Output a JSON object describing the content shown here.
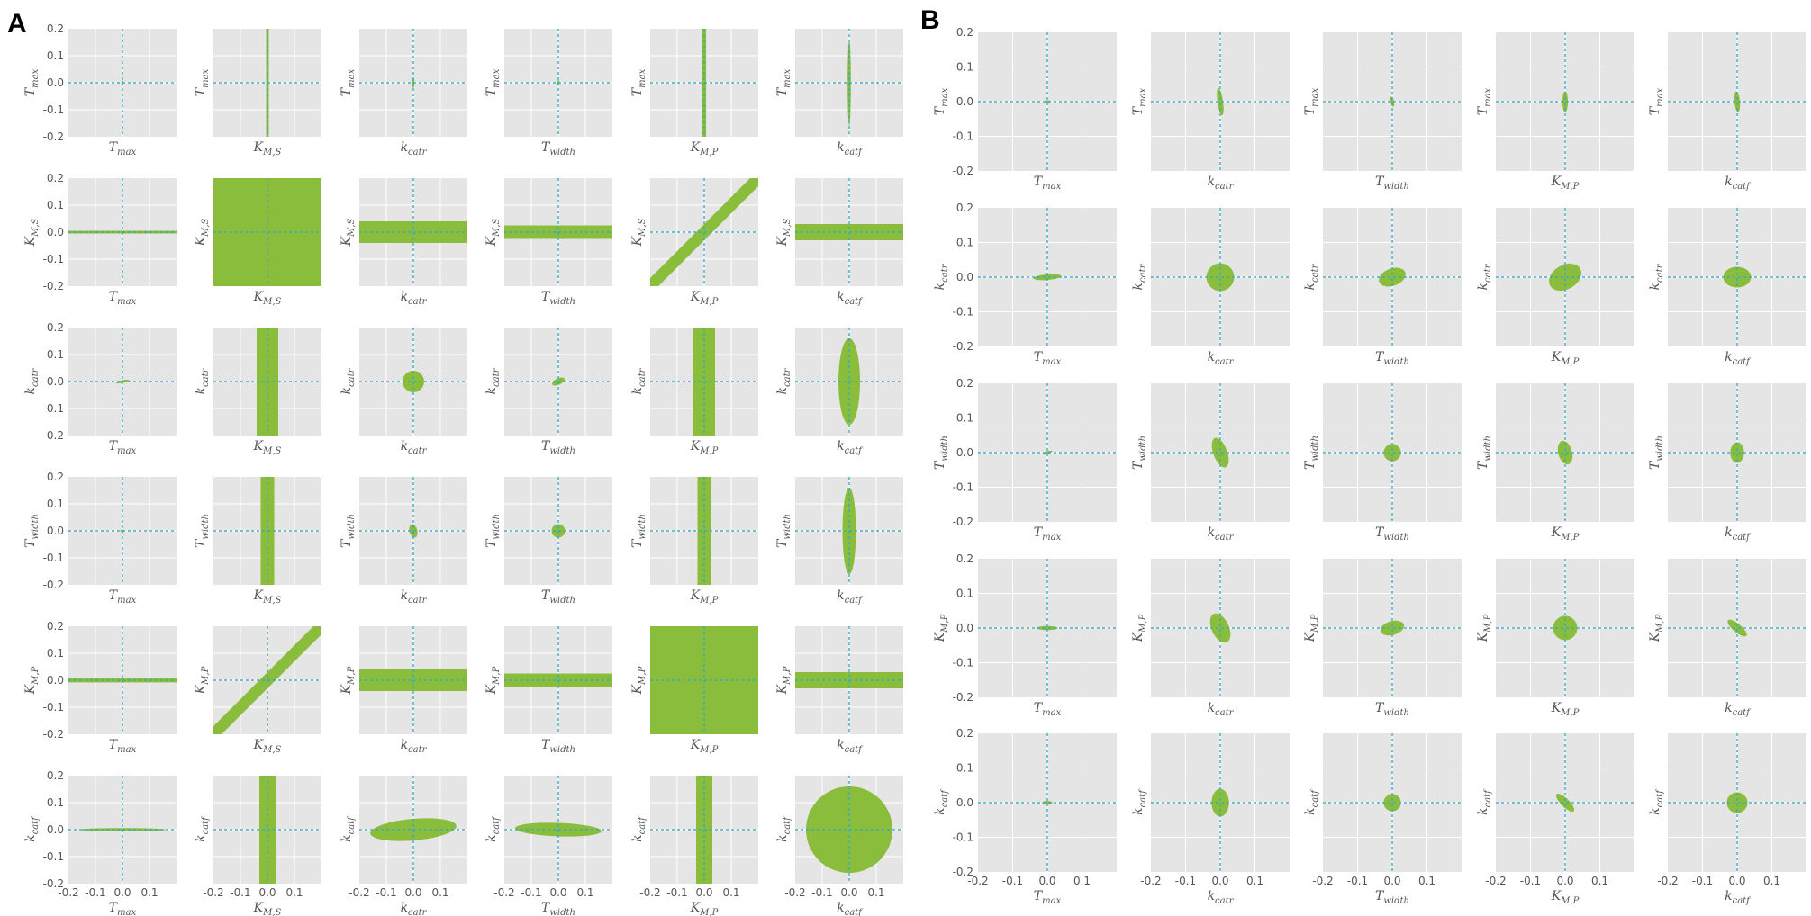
{
  "colors": {
    "background": "#e5e5e5",
    "grid": "#ffffff",
    "fill": "#8bbd3c",
    "crosshair": "#2aa8c8",
    "text": "#555555"
  },
  "chart_data": [
    {
      "panel": "A",
      "type": "scatter",
      "description_type": "confidence-region matrix",
      "xlim": [
        -0.2,
        0.2
      ],
      "ylim": [
        -0.2,
        0.2
      ],
      "tick_values": [
        -0.2,
        -0.1,
        0.0,
        0.1,
        0.2
      ],
      "x_tick_labels": [
        "-0.2",
        "-0.1",
        "0.0",
        "0.1"
      ],
      "y_tick_labels": [
        "0.2",
        "0.1",
        "0.0",
        "-0.1",
        "-0.2"
      ],
      "rows": [
        {
          "label": "T",
          "sub": "max"
        },
        {
          "label": "K",
          "sub": "M,S"
        },
        {
          "label": "k",
          "sub": "catr"
        },
        {
          "label": "T",
          "sub": "width"
        },
        {
          "label": "K",
          "sub": "M,P"
        },
        {
          "label": "k",
          "sub": "catf"
        }
      ],
      "cols": [
        {
          "label": "T",
          "sub": "max"
        },
        {
          "label": "K",
          "sub": "M,S"
        },
        {
          "label": "k",
          "sub": "catr"
        },
        {
          "label": "T",
          "sub": "width"
        },
        {
          "label": "K",
          "sub": "M,P"
        },
        {
          "label": "k",
          "sub": "catf"
        }
      ],
      "cells": [
        [
          {
            "kind": "ellipse",
            "cx": 0,
            "cy": 0,
            "rx": 0.004,
            "ry": 0.008,
            "angle": 0
          },
          {
            "kind": "vband",
            "center": 0,
            "half": 0.005
          },
          {
            "kind": "ellipse",
            "cx": 0,
            "cy": 0,
            "rx": 0.004,
            "ry": 0.02,
            "angle": 0
          },
          {
            "kind": "ellipse",
            "cx": 0,
            "cy": 0,
            "rx": 0.003,
            "ry": 0.01,
            "angle": 0
          },
          {
            "kind": "vband",
            "center": 0,
            "half": 0.007
          },
          {
            "kind": "ellipse",
            "cx": 0,
            "cy": 0,
            "rx": 0.006,
            "ry": 0.16,
            "angle": 0
          }
        ],
        [
          {
            "kind": "hband",
            "center": 0,
            "half": 0.005
          },
          {
            "kind": "full"
          },
          {
            "kind": "hband",
            "center": 0,
            "half": 0.04
          },
          {
            "kind": "hband",
            "center": 0,
            "half": 0.025
          },
          {
            "kind": "diag",
            "half": 0.03
          },
          {
            "kind": "hband",
            "center": 0,
            "half": 0.03
          }
        ],
        [
          {
            "kind": "ellipse",
            "cx": 0,
            "cy": 0,
            "rx": 0.025,
            "ry": 0.005,
            "angle": 10
          },
          {
            "kind": "vband",
            "center": 0,
            "half": 0.04
          },
          {
            "kind": "ellipse",
            "cx": 0,
            "cy": 0,
            "rx": 0.04,
            "ry": 0.04,
            "angle": 0
          },
          {
            "kind": "ellipse",
            "cx": 0,
            "cy": 0,
            "rx": 0.025,
            "ry": 0.012,
            "angle": 25
          },
          {
            "kind": "vband",
            "center": 0,
            "half": 0.04
          },
          {
            "kind": "ellipse",
            "cx": 0,
            "cy": 0,
            "rx": 0.04,
            "ry": 0.16,
            "angle": 0
          }
        ],
        [
          {
            "kind": "ellipse",
            "cx": 0,
            "cy": 0,
            "rx": 0.008,
            "ry": 0.004,
            "angle": 0
          },
          {
            "kind": "vband",
            "center": 0,
            "half": 0.025
          },
          {
            "kind": "ellipse",
            "cx": 0,
            "cy": 0,
            "rx": 0.015,
            "ry": 0.025,
            "angle": 15
          },
          {
            "kind": "ellipse",
            "cx": 0,
            "cy": 0,
            "rx": 0.025,
            "ry": 0.025,
            "angle": 0
          },
          {
            "kind": "vband",
            "center": 0,
            "half": 0.025
          },
          {
            "kind": "ellipse",
            "cx": 0,
            "cy": 0,
            "rx": 0.025,
            "ry": 0.16,
            "angle": 0
          }
        ],
        [
          {
            "kind": "hband",
            "center": 0,
            "half": 0.008
          },
          {
            "kind": "diag",
            "half": 0.03
          },
          {
            "kind": "hband",
            "center": 0,
            "half": 0.04
          },
          {
            "kind": "hband",
            "center": 0,
            "half": 0.025
          },
          {
            "kind": "full"
          },
          {
            "kind": "hband",
            "center": 0,
            "half": 0.03
          }
        ],
        [
          {
            "kind": "ellipse",
            "cx": 0,
            "cy": 0,
            "rx": 0.16,
            "ry": 0.006,
            "angle": 0
          },
          {
            "kind": "vband",
            "center": 0,
            "half": 0.03
          },
          {
            "kind": "ellipse",
            "cx": 0,
            "cy": 0,
            "rx": 0.16,
            "ry": 0.04,
            "angle": 5
          },
          {
            "kind": "ellipse",
            "cx": 0,
            "cy": 0,
            "rx": 0.16,
            "ry": 0.025,
            "angle": -2
          },
          {
            "kind": "vband",
            "center": 0,
            "half": 0.03
          },
          {
            "kind": "ellipse",
            "cx": 0,
            "cy": 0,
            "rx": 0.16,
            "ry": 0.16,
            "angle": 0
          }
        ]
      ]
    },
    {
      "panel": "B",
      "type": "scatter",
      "description_type": "confidence-region matrix",
      "xlim": [
        -0.2,
        0.2
      ],
      "ylim": [
        -0.2,
        0.2
      ],
      "tick_values": [
        -0.2,
        -0.1,
        0.0,
        0.1,
        0.2
      ],
      "x_tick_labels": [
        "-0.2",
        "-0.1",
        "0.0",
        "0.1"
      ],
      "y_tick_labels": [
        "0.2",
        "0.1",
        "0.0",
        "-0.1",
        "-0.2"
      ],
      "rows": [
        {
          "label": "T",
          "sub": "max"
        },
        {
          "label": "k",
          "sub": "catr"
        },
        {
          "label": "T",
          "sub": "width"
        },
        {
          "label": "K",
          "sub": "M,P"
        },
        {
          "label": "k",
          "sub": "catf"
        }
      ],
      "cols": [
        {
          "label": "T",
          "sub": "max"
        },
        {
          "label": "k",
          "sub": "catr"
        },
        {
          "label": "T",
          "sub": "width"
        },
        {
          "label": "K",
          "sub": "M,P"
        },
        {
          "label": "k",
          "sub": "catf"
        }
      ],
      "cells": [
        [
          {
            "kind": "ellipse",
            "cx": 0,
            "cy": 0,
            "rx": 0.008,
            "ry": 0.004,
            "angle": 0
          },
          {
            "kind": "ellipse",
            "cx": 0,
            "cy": 0,
            "rx": 0.008,
            "ry": 0.04,
            "angle": 8
          },
          {
            "kind": "ellipse",
            "cx": 0,
            "cy": 0,
            "rx": 0.005,
            "ry": 0.015,
            "angle": 10
          },
          {
            "kind": "ellipse",
            "cx": 0,
            "cy": 0,
            "rx": 0.008,
            "ry": 0.03,
            "angle": 0
          },
          {
            "kind": "ellipse",
            "cx": 0,
            "cy": 0,
            "rx": 0.008,
            "ry": 0.03,
            "angle": 5
          }
        ],
        [
          {
            "kind": "ellipse",
            "cx": 0,
            "cy": 0,
            "rx": 0.04,
            "ry": 0.008,
            "angle": 5
          },
          {
            "kind": "ellipse",
            "cx": 0,
            "cy": 0,
            "rx": 0.04,
            "ry": 0.04,
            "angle": 0
          },
          {
            "kind": "ellipse",
            "cx": 0,
            "cy": 0,
            "rx": 0.04,
            "ry": 0.025,
            "angle": 20
          },
          {
            "kind": "ellipse",
            "cx": 0,
            "cy": 0,
            "rx": 0.05,
            "ry": 0.035,
            "angle": 30
          },
          {
            "kind": "ellipse",
            "cx": 0,
            "cy": 0,
            "rx": 0.04,
            "ry": 0.03,
            "angle": 0
          }
        ],
        [
          {
            "kind": "ellipse",
            "cx": 0,
            "cy": 0,
            "rx": 0.015,
            "ry": 0.004,
            "angle": 15
          },
          {
            "kind": "ellipse",
            "cx": 0,
            "cy": 0,
            "rx": 0.02,
            "ry": 0.045,
            "angle": 20
          },
          {
            "kind": "ellipse",
            "cx": 0,
            "cy": 0,
            "rx": 0.025,
            "ry": 0.025,
            "angle": 0
          },
          {
            "kind": "ellipse",
            "cx": 0,
            "cy": 0,
            "rx": 0.02,
            "ry": 0.035,
            "angle": 15
          },
          {
            "kind": "ellipse",
            "cx": 0,
            "cy": 0,
            "rx": 0.02,
            "ry": 0.03,
            "angle": 0
          }
        ],
        [
          {
            "kind": "ellipse",
            "cx": 0,
            "cy": 0,
            "rx": 0.03,
            "ry": 0.006,
            "angle": 0
          },
          {
            "kind": "ellipse",
            "cx": 0,
            "cy": 0,
            "rx": 0.025,
            "ry": 0.045,
            "angle": 25
          },
          {
            "kind": "ellipse",
            "cx": 0,
            "cy": 0,
            "rx": 0.035,
            "ry": 0.02,
            "angle": 15
          },
          {
            "kind": "ellipse",
            "cx": 0,
            "cy": 0,
            "rx": 0.035,
            "ry": 0.035,
            "angle": 0
          },
          {
            "kind": "ellipse",
            "cx": 0,
            "cy": 0,
            "rx": 0.035,
            "ry": 0.012,
            "angle": -40
          }
        ],
        [
          {
            "kind": "ellipse",
            "cx": 0,
            "cy": 0,
            "rx": 0.015,
            "ry": 0.005,
            "angle": 0
          },
          {
            "kind": "ellipse",
            "cx": 0,
            "cy": 0,
            "rx": 0.025,
            "ry": 0.04,
            "angle": 0
          },
          {
            "kind": "ellipse",
            "cx": 0,
            "cy": 0,
            "rx": 0.025,
            "ry": 0.025,
            "angle": 0
          },
          {
            "kind": "ellipse",
            "cx": 0,
            "cy": 0,
            "rx": 0.035,
            "ry": 0.012,
            "angle": -45
          },
          {
            "kind": "ellipse",
            "cx": 0,
            "cy": 0,
            "rx": 0.03,
            "ry": 0.03,
            "angle": 0
          }
        ]
      ]
    }
  ]
}
